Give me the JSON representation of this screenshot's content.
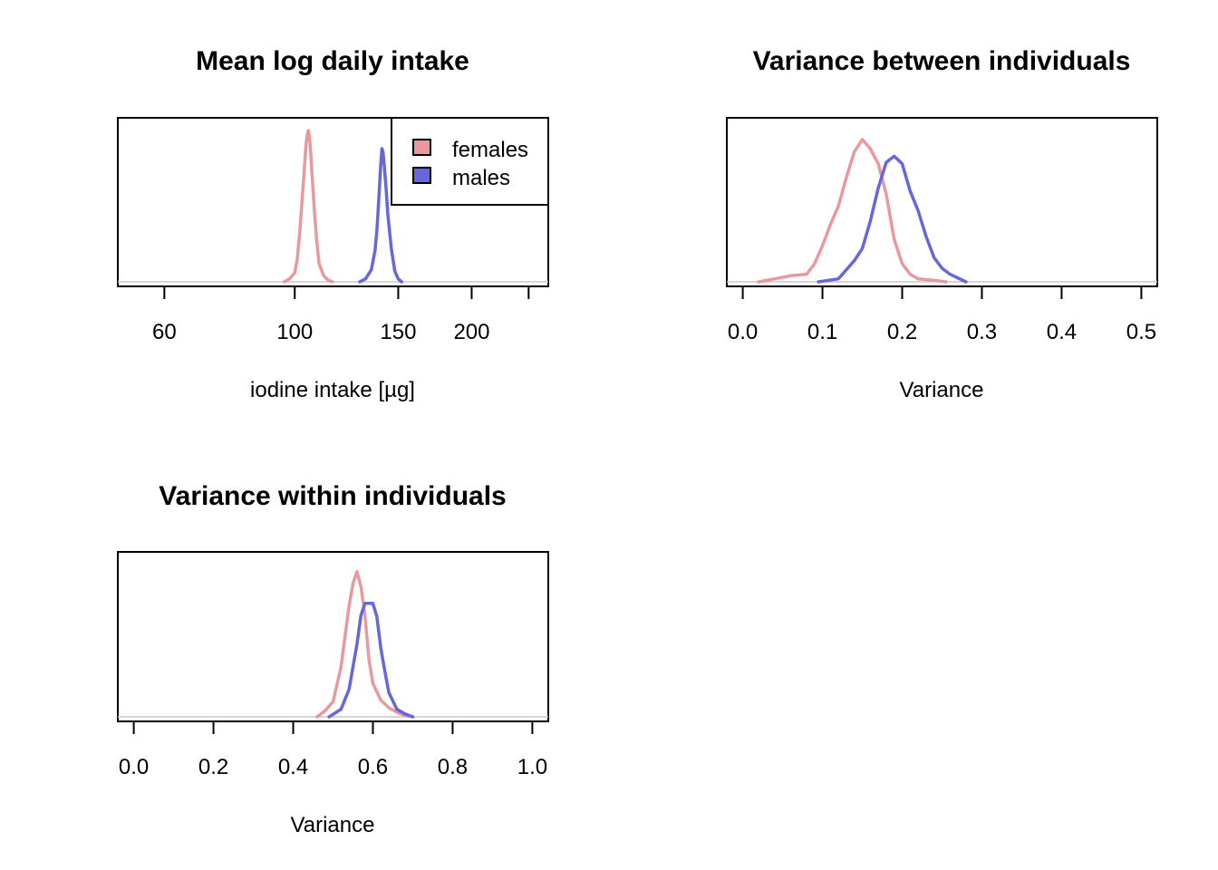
{
  "colors": {
    "females": "#E8999C",
    "males": "#6666DD"
  },
  "chart_data": [
    {
      "id": "panel1",
      "type": "line",
      "title": "Mean log daily intake",
      "xlabel": "iodine intake [µg]",
      "ylabel": "",
      "x_scale": "log",
      "xlim": [
        50,
        270
      ],
      "xticks": [
        60,
        100,
        150,
        200,
        250
      ],
      "xtick_labels": [
        "60",
        "100",
        "150",
        "200",
        ""
      ],
      "grid": false,
      "legend": {
        "position": "top-right",
        "entries": [
          "females",
          "males"
        ]
      },
      "series": [
        {
          "name": "females",
          "x": [
            96,
            98,
            100,
            101,
            102,
            103,
            104,
            104.5,
            105,
            105.5,
            106,
            106.5,
            107,
            108,
            109,
            110,
            112,
            114,
            116
          ],
          "y": [
            0.0,
            0.02,
            0.06,
            0.15,
            0.33,
            0.56,
            0.79,
            0.9,
            0.97,
            1.0,
            0.95,
            0.84,
            0.71,
            0.47,
            0.27,
            0.12,
            0.04,
            0.01,
            0.0
          ]
        },
        {
          "name": "males",
          "x": [
            129,
            132,
            135,
            137,
            138,
            139,
            140,
            140.7,
            141.3,
            142,
            143,
            144,
            146,
            148,
            150,
            152
          ],
          "y": [
            0.0,
            0.02,
            0.08,
            0.21,
            0.35,
            0.55,
            0.76,
            0.88,
            0.86,
            0.77,
            0.62,
            0.45,
            0.22,
            0.07,
            0.02,
            0.0
          ]
        }
      ]
    },
    {
      "id": "panel2",
      "type": "line",
      "title": "Variance between individuals",
      "xlabel": "Variance",
      "ylabel": "",
      "xlim": [
        -0.02,
        0.52
      ],
      "xticks": [
        0.0,
        0.1,
        0.2,
        0.3,
        0.4,
        0.5
      ],
      "xtick_labels": [
        "0.0",
        "0.1",
        "0.2",
        "0.3",
        "0.4",
        "0.5"
      ],
      "grid": false,
      "series": [
        {
          "name": "females",
          "x": [
            0.02,
            0.04,
            0.06,
            0.08,
            0.09,
            0.1,
            0.11,
            0.12,
            0.13,
            0.14,
            0.15,
            0.16,
            0.17,
            0.18,
            0.19,
            0.2,
            0.21,
            0.22,
            0.24,
            0.255
          ],
          "y": [
            0.0,
            0.02,
            0.04,
            0.05,
            0.12,
            0.24,
            0.38,
            0.5,
            0.69,
            0.86,
            0.94,
            0.88,
            0.78,
            0.58,
            0.28,
            0.12,
            0.05,
            0.02,
            0.01,
            0.0
          ]
        },
        {
          "name": "males",
          "x": [
            0.095,
            0.12,
            0.13,
            0.14,
            0.15,
            0.16,
            0.17,
            0.18,
            0.19,
            0.2,
            0.21,
            0.22,
            0.23,
            0.24,
            0.25,
            0.26,
            0.28
          ],
          "y": [
            0.0,
            0.02,
            0.08,
            0.14,
            0.22,
            0.4,
            0.62,
            0.79,
            0.83,
            0.78,
            0.6,
            0.47,
            0.3,
            0.16,
            0.09,
            0.05,
            0.0
          ]
        }
      ]
    },
    {
      "id": "panel3",
      "type": "line",
      "title": "Variance within individuals",
      "xlabel": "Variance",
      "ylabel": "",
      "xlim": [
        -0.04,
        1.04
      ],
      "xticks": [
        0.0,
        0.2,
        0.4,
        0.6,
        0.8,
        1.0
      ],
      "xtick_labels": [
        "0.0",
        "0.2",
        "0.4",
        "0.6",
        "0.8",
        "1.0"
      ],
      "grid": false,
      "series": [
        {
          "name": "females",
          "x": [
            0.46,
            0.48,
            0.5,
            0.52,
            0.53,
            0.54,
            0.55,
            0.56,
            0.57,
            0.58,
            0.59,
            0.6,
            0.62,
            0.64,
            0.66,
            0.68,
            0.7
          ],
          "y": [
            0.0,
            0.04,
            0.1,
            0.33,
            0.53,
            0.73,
            0.88,
            0.96,
            0.86,
            0.67,
            0.38,
            0.22,
            0.11,
            0.06,
            0.03,
            0.01,
            0.0
          ]
        },
        {
          "name": "males",
          "x": [
            0.49,
            0.52,
            0.54,
            0.56,
            0.57,
            0.58,
            0.59,
            0.6,
            0.61,
            0.62,
            0.63,
            0.64,
            0.66,
            0.68,
            0.7
          ],
          "y": [
            0.0,
            0.05,
            0.18,
            0.48,
            0.67,
            0.75,
            0.75,
            0.75,
            0.66,
            0.45,
            0.3,
            0.16,
            0.05,
            0.02,
            0.0
          ]
        }
      ]
    }
  ]
}
